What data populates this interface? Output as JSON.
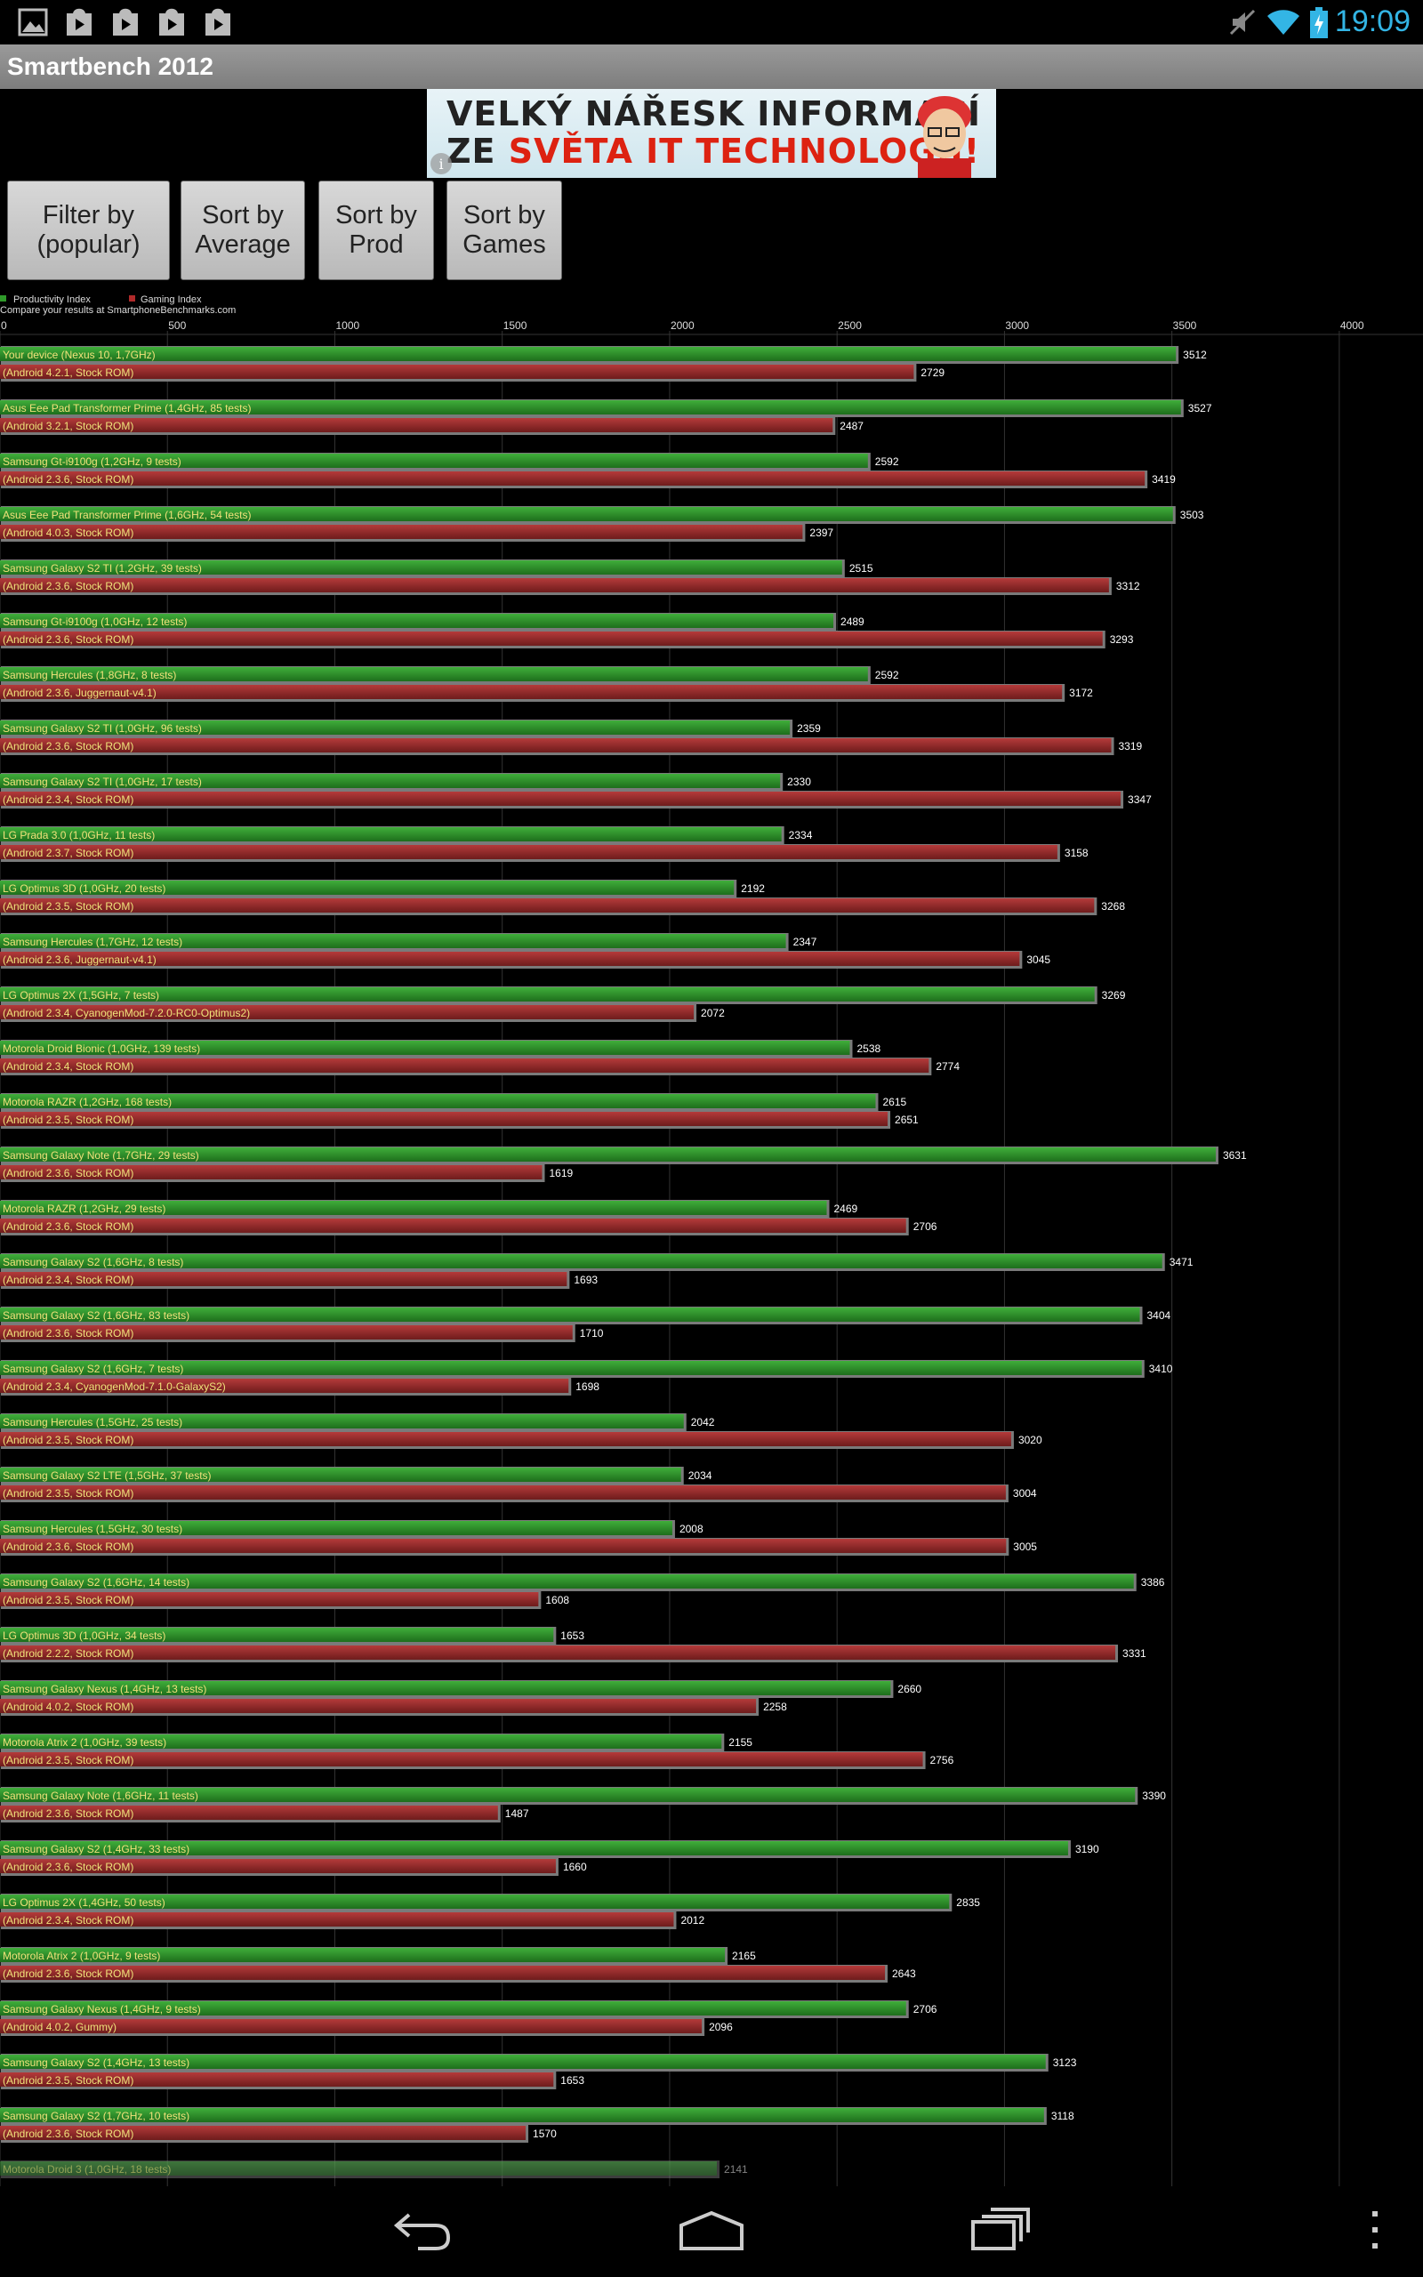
{
  "status_bar": {
    "time": "19:09",
    "left_icons": [
      "image-icon",
      "play-store-icon",
      "play-store-icon",
      "play-store-icon",
      "play-store-icon"
    ],
    "right_icons": [
      "mute-icon",
      "wifi-icon",
      "battery-charging-icon"
    ],
    "accent_color": "#33b5e5"
  },
  "app": {
    "title": "Smartbench 2012"
  },
  "ad": {
    "line1": "VELKÝ NÁŘESK INFORMACÍ",
    "line2_prefix": "ZE ",
    "line2_highlight": "SVĚTA IT TECHNOLOGIÍ!"
  },
  "buttons": {
    "filter": "Filter by\n(popular)",
    "sort_average": "Sort by\nAverage",
    "sort_prod": "Sort by\nProd",
    "sort_games": "Sort by\nGames"
  },
  "chart_data": {
    "type": "bar",
    "orientation": "horizontal",
    "legend": [
      {
        "label": "Productivity Index",
        "color": "#2f9a2a"
      },
      {
        "label": "Gaming Index",
        "color": "#b02a2a"
      }
    ],
    "subtitle": "Compare your results at SmartphoneBenchmarks.com",
    "x_ticks": [
      0,
      500,
      1000,
      1500,
      2000,
      2500,
      3000,
      3500,
      4000
    ],
    "xlim": [
      0,
      4250
    ],
    "entries": [
      {
        "device": "Your device (Nexus 10, 1,7GHz)",
        "rom": "(Android 4.2.1, Stock ROM)",
        "productivity": 3512,
        "gaming": 2729
      },
      {
        "device": "Asus Eee Pad Transformer Prime (1,4GHz, 85 tests)",
        "rom": "(Android 3.2.1, Stock ROM)",
        "productivity": 3527,
        "gaming": 2487
      },
      {
        "device": "Samsung Gt-i9100g (1,2GHz, 9 tests)",
        "rom": "(Android 2.3.6, Stock ROM)",
        "productivity": 2592,
        "gaming": 3419
      },
      {
        "device": "Asus Eee Pad Transformer Prime (1,6GHz, 54 tests)",
        "rom": "(Android 4.0.3, Stock ROM)",
        "productivity": 3503,
        "gaming": 2397
      },
      {
        "device": "Samsung Galaxy S2 TI (1,2GHz, 39 tests)",
        "rom": "(Android 2.3.6, Stock ROM)",
        "productivity": 2515,
        "gaming": 3312
      },
      {
        "device": "Samsung Gt-i9100g (1,0GHz, 12 tests)",
        "rom": "(Android 2.3.6, Stock ROM)",
        "productivity": 2489,
        "gaming": 3293
      },
      {
        "device": "Samsung Hercules (1,8GHz, 8 tests)",
        "rom": "(Android 2.3.6, Juggernaut-v4.1)",
        "productivity": 2592,
        "gaming": 3172
      },
      {
        "device": "Samsung Galaxy S2 TI (1,0GHz, 96 tests)",
        "rom": "(Android 2.3.6, Stock ROM)",
        "productivity": 2359,
        "gaming": 3319
      },
      {
        "device": "Samsung Galaxy S2 TI (1,0GHz, 17 tests)",
        "rom": "(Android 2.3.4, Stock ROM)",
        "productivity": 2330,
        "gaming": 3347
      },
      {
        "device": "LG Prada 3.0 (1,0GHz, 11 tests)",
        "rom": "(Android 2.3.7, Stock ROM)",
        "productivity": 2334,
        "gaming": 3158
      },
      {
        "device": "LG Optimus 3D (1,0GHz, 20 tests)",
        "rom": "(Android 2.3.5, Stock ROM)",
        "productivity": 2192,
        "gaming": 3268
      },
      {
        "device": "Samsung Hercules (1,7GHz, 12 tests)",
        "rom": "(Android 2.3.6, Juggernaut-v4.1)",
        "productivity": 2347,
        "gaming": 3045
      },
      {
        "device": "LG Optimus 2X (1,5GHz, 7 tests)",
        "rom": "(Android 2.3.4, CyanogenMod-7.2.0-RC0-Optimus2)",
        "productivity": 3269,
        "gaming": 2072
      },
      {
        "device": "Motorola Droid Bionic (1,0GHz, 139 tests)",
        "rom": "(Android 2.3.4, Stock ROM)",
        "productivity": 2538,
        "gaming": 2774
      },
      {
        "device": "Motorola RAZR (1,2GHz, 168 tests)",
        "rom": "(Android 2.3.5, Stock ROM)",
        "productivity": 2615,
        "gaming": 2651
      },
      {
        "device": "Samsung Galaxy Note (1,7GHz, 29 tests)",
        "rom": "(Android 2.3.6, Stock ROM)",
        "productivity": 3631,
        "gaming": 1619
      },
      {
        "device": "Motorola RAZR (1,2GHz, 29 tests)",
        "rom": "(Android 2.3.6, Stock ROM)",
        "productivity": 2469,
        "gaming": 2706
      },
      {
        "device": "Samsung Galaxy S2 (1,6GHz, 8 tests)",
        "rom": "(Android 2.3.4, Stock ROM)",
        "productivity": 3471,
        "gaming": 1693
      },
      {
        "device": "Samsung Galaxy S2 (1,6GHz, 83 tests)",
        "rom": "(Android 2.3.6, Stock ROM)",
        "productivity": 3404,
        "gaming": 1710
      },
      {
        "device": "Samsung Galaxy S2 (1,6GHz, 7 tests)",
        "rom": "(Android 2.3.4, CyanogenMod-7.1.0-GalaxyS2)",
        "productivity": 3410,
        "gaming": 1698
      },
      {
        "device": "Samsung Hercules (1,5GHz, 25 tests)",
        "rom": "(Android 2.3.5, Stock ROM)",
        "productivity": 2042,
        "gaming": 3020
      },
      {
        "device": "Samsung Galaxy S2 LTE (1,5GHz, 37 tests)",
        "rom": "(Android 2.3.5, Stock ROM)",
        "productivity": 2034,
        "gaming": 3004
      },
      {
        "device": "Samsung Hercules (1,5GHz, 30 tests)",
        "rom": "(Android 2.3.6, Stock ROM)",
        "productivity": 2008,
        "gaming": 3005
      },
      {
        "device": "Samsung Galaxy S2 (1,6GHz, 14 tests)",
        "rom": "(Android 2.3.5, Stock ROM)",
        "productivity": 3386,
        "gaming": 1608
      },
      {
        "device": "LG Optimus 3D (1,0GHz, 34 tests)",
        "rom": "(Android 2.2.2, Stock ROM)",
        "productivity": 1653,
        "gaming": 3331
      },
      {
        "device": "Samsung Galaxy Nexus (1,4GHz, 13 tests)",
        "rom": "(Android 4.0.2, Stock ROM)",
        "productivity": 2660,
        "gaming": 2258
      },
      {
        "device": "Motorola Atrix 2 (1,0GHz, 39 tests)",
        "rom": "(Android 2.3.5, Stock ROM)",
        "productivity": 2155,
        "gaming": 2756
      },
      {
        "device": "Samsung Galaxy Note (1,6GHz, 11 tests)",
        "rom": "(Android 2.3.6, Stock ROM)",
        "productivity": 3390,
        "gaming": 1487
      },
      {
        "device": "Samsung Galaxy S2 (1,4GHz, 33 tests)",
        "rom": "(Android 2.3.6, Stock ROM)",
        "productivity": 3190,
        "gaming": 1660
      },
      {
        "device": "LG Optimus 2X (1,4GHz, 50 tests)",
        "rom": "(Android 2.3.4, Stock ROM)",
        "productivity": 2835,
        "gaming": 2012
      },
      {
        "device": "Motorola Atrix 2 (1,0GHz, 9 tests)",
        "rom": "(Android 2.3.6, Stock ROM)",
        "productivity": 2165,
        "gaming": 2643
      },
      {
        "device": "Samsung Galaxy Nexus (1,4GHz, 9 tests)",
        "rom": "(Android 4.0.2, Gummy)",
        "productivity": 2706,
        "gaming": 2096
      },
      {
        "device": "Samsung Galaxy S2 (1,4GHz, 13 tests)",
        "rom": "(Android 2.3.5, Stock ROM)",
        "productivity": 3123,
        "gaming": 1653
      },
      {
        "device": "Samsung Galaxy S2 (1,7GHz, 10 tests)",
        "rom": "(Android 2.3.6, Stock ROM)",
        "productivity": 3118,
        "gaming": 1570
      },
      {
        "device": "Motorola Droid 3 (1,0GHz, 18 tests)",
        "rom": "",
        "productivity": 2141,
        "gaming": null
      }
    ]
  },
  "nav_bar": {
    "icons": [
      "back-icon",
      "home-icon",
      "recent-apps-icon",
      "menu-overflow-icon"
    ]
  }
}
